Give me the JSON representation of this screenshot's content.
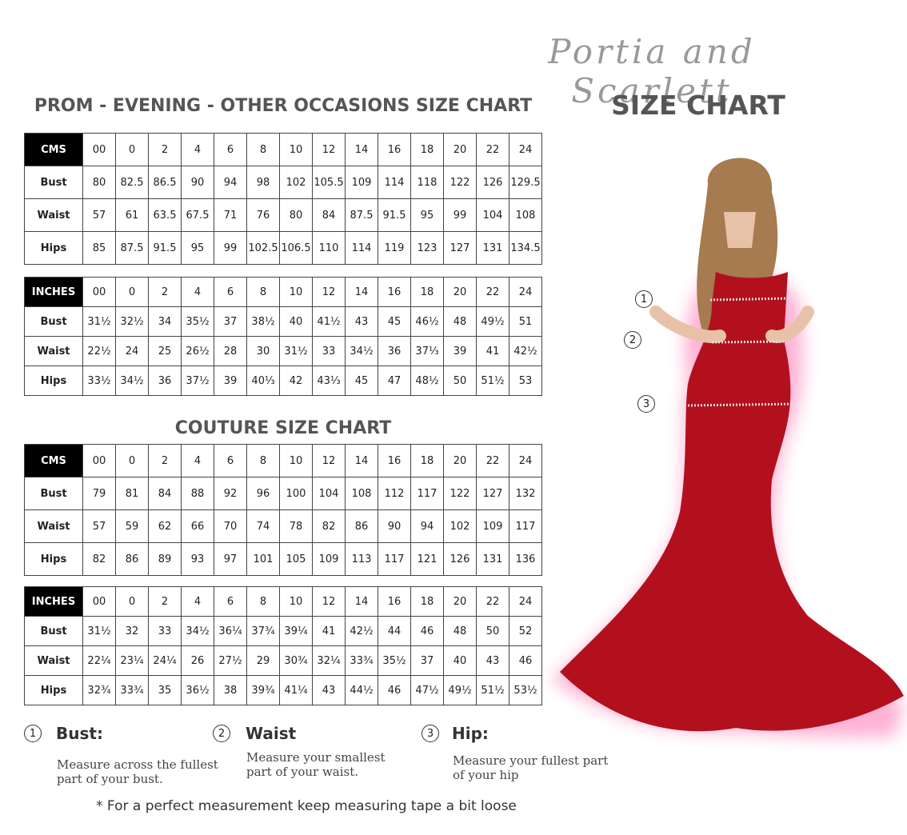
{
  "brand": "Portia and Scarlett",
  "title": "SIZE CHART",
  "sections": [
    {
      "heading": "PROM - EVENING - OTHER OCCASIONS SIZE CHART",
      "tables": [
        {
          "header": [
            "CMS",
            "00",
            "0",
            "2",
            "4",
            "6",
            "8",
            "10",
            "12",
            "14",
            "16",
            "18",
            "20",
            "22",
            "24"
          ],
          "rows": [
            [
              "Bust",
              "80",
              "82.5",
              "86.5",
              "90",
              "94",
              "98",
              "102",
              "105.5",
              "109",
              "114",
              "118",
              "122",
              "126",
              "129.5"
            ],
            [
              "Waist",
              "57",
              "61",
              "63.5",
              "67.5",
              "71",
              "76",
              "80",
              "84",
              "87.5",
              "91.5",
              "95",
              "99",
              "104",
              "108"
            ],
            [
              "Hips",
              "85",
              "87.5",
              "91.5",
              "95",
              "99",
              "102.5",
              "106.5",
              "110",
              "114",
              "119",
              "123",
              "127",
              "131",
              "134.5"
            ]
          ]
        },
        {
          "header": [
            "INCHES",
            "00",
            "0",
            "2",
            "4",
            "6",
            "8",
            "10",
            "12",
            "14",
            "16",
            "18",
            "20",
            "22",
            "24"
          ],
          "rows": [
            [
              "Bust",
              "31½",
              "32½",
              "34",
              "35½",
              "37",
              "38½",
              "40",
              "41½",
              "43",
              "45",
              "46½",
              "48",
              "49½",
              "51"
            ],
            [
              "Waist",
              "22½",
              "24",
              "25",
              "26½",
              "28",
              "30",
              "31½",
              "33",
              "34½",
              "36",
              "37⅓",
              "39",
              "41",
              "42½"
            ],
            [
              "Hips",
              "33½",
              "34½",
              "36",
              "37½",
              "39",
              "40⅓",
              "42",
              "43⅓",
              "45",
              "47",
              "48½",
              "50",
              "51½",
              "53"
            ]
          ]
        }
      ]
    },
    {
      "heading": "COUTURE SIZE CHART",
      "tables": [
        {
          "header": [
            "CMS",
            "00",
            "0",
            "2",
            "4",
            "6",
            "8",
            "10",
            "12",
            "14",
            "16",
            "18",
            "20",
            "22",
            "24"
          ],
          "rows": [
            [
              "Bust",
              "79",
              "81",
              "84",
              "88",
              "92",
              "96",
              "100",
              "104",
              "108",
              "112",
              "117",
              "122",
              "127",
              "132"
            ],
            [
              "Waist",
              "57",
              "59",
              "62",
              "66",
              "70",
              "74",
              "78",
              "82",
              "86",
              "90",
              "94",
              "102",
              "109",
              "117"
            ],
            [
              "Hips",
              "82",
              "86",
              "89",
              "93",
              "97",
              "101",
              "105",
              "109",
              "113",
              "117",
              "121",
              "126",
              "131",
              "136"
            ]
          ]
        },
        {
          "header": [
            "INCHES",
            "00",
            "0",
            "2",
            "4",
            "6",
            "8",
            "10",
            "12",
            "14",
            "16",
            "18",
            "20",
            "22",
            "24"
          ],
          "rows": [
            [
              "Bust",
              "31½",
              "32",
              "33",
              "34½",
              "36¼",
              "37¾",
              "39¼",
              "41",
              "42½",
              "44",
              "46",
              "48",
              "50",
              "52"
            ],
            [
              "Waist",
              "22¼",
              "23¼",
              "24¼",
              "26",
              "27½",
              "29",
              "30¾",
              "32¼",
              "33¾",
              "35½",
              "37",
              "40",
              "43",
              "46"
            ],
            [
              "Hips",
              "32¾",
              "33¾",
              "35",
              "36½",
              "38",
              "39¾",
              "41¼",
              "43",
              "44½",
              "46",
              "47½",
              "49½",
              "51½",
              "53½"
            ]
          ]
        }
      ]
    }
  ],
  "legend": [
    {
      "number": "1",
      "label": "Bust:",
      "text": "Measure across the fullest part of your bust."
    },
    {
      "number": "2",
      "label": "Waist",
      "text": "Measure your smallest part of your waist."
    },
    {
      "number": "3",
      "label": "Hip:",
      "text": "Measure your fullest part of your hip"
    }
  ],
  "figure_markers": [
    "1",
    "2",
    "3"
  ],
  "note": "* For a perfect measurement keep measuring tape a bit loose"
}
